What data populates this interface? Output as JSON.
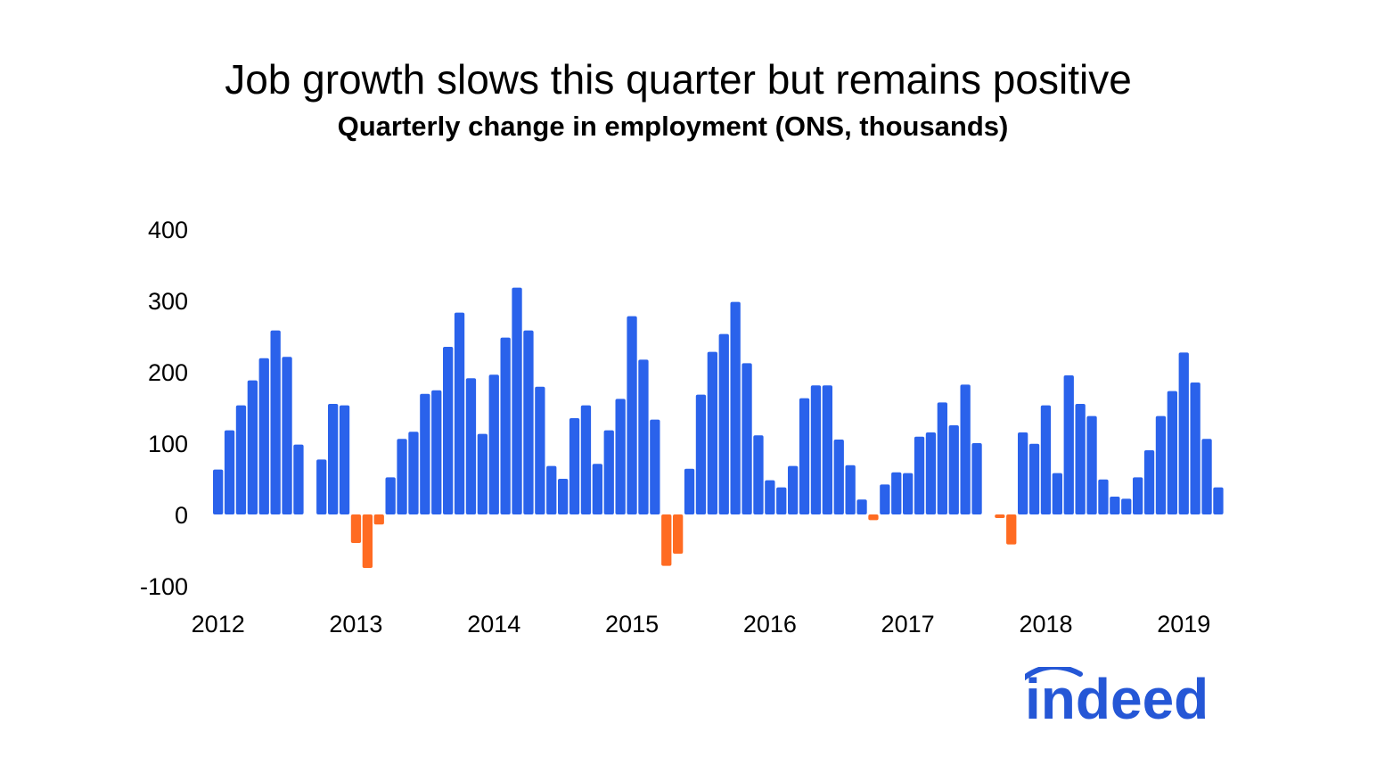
{
  "chart_data": {
    "type": "bar",
    "title": "Job growth slows this quarter but remains positive",
    "subtitle": "Quarterly change in employment (ONS, thousands)",
    "xlabel": "",
    "ylabel": "",
    "ylim": [
      -100,
      400
    ],
    "yticks": [
      400,
      300,
      200,
      100,
      0,
      -100
    ],
    "year_labels": [
      "2012",
      "2013",
      "2014",
      "2015",
      "2016",
      "2017",
      "2018",
      "2019"
    ],
    "grid": false,
    "legend": "none",
    "colors": {
      "positive": "#2a62eb",
      "negative": "#ff6b22"
    },
    "months": [
      "2012-01",
      "2012-02",
      "2012-03",
      "2012-04",
      "2012-05",
      "2012-06",
      "2012-07",
      "2012-08",
      "2012-09",
      "2012-10",
      "2012-11",
      "2012-12",
      "2013-01",
      "2013-02",
      "2013-03",
      "2013-04",
      "2013-05",
      "2013-06",
      "2013-07",
      "2013-08",
      "2013-09",
      "2013-10",
      "2013-11",
      "2013-12",
      "2014-01",
      "2014-02",
      "2014-03",
      "2014-04",
      "2014-05",
      "2014-06",
      "2014-07",
      "2014-08",
      "2014-09",
      "2014-10",
      "2014-11",
      "2014-12",
      "2015-01",
      "2015-02",
      "2015-03",
      "2015-04",
      "2015-05",
      "2015-06",
      "2015-07",
      "2015-08",
      "2015-09",
      "2015-10",
      "2015-11",
      "2015-12",
      "2016-01",
      "2016-02",
      "2016-03",
      "2016-04",
      "2016-05",
      "2016-06",
      "2016-07",
      "2016-08",
      "2016-09",
      "2016-10",
      "2016-11",
      "2016-12",
      "2017-01",
      "2017-02",
      "2017-03",
      "2017-04",
      "2017-05",
      "2017-06",
      "2017-07",
      "2017-08",
      "2017-09",
      "2017-10",
      "2017-11",
      "2017-12",
      "2018-01",
      "2018-02",
      "2018-03",
      "2018-04",
      "2018-05",
      "2018-06",
      "2018-07",
      "2018-08",
      "2018-09",
      "2018-10",
      "2018-11",
      "2018-12",
      "2019-01",
      "2019-02",
      "2019-03",
      "2019-04"
    ],
    "values": [
      63,
      118,
      153,
      188,
      219,
      258,
      221,
      98,
      0,
      77,
      155,
      153,
      -40,
      -75,
      -14,
      52,
      106,
      116,
      169,
      174,
      235,
      283,
      191,
      113,
      196,
      248,
      318,
      258,
      179,
      68,
      50,
      135,
      153,
      71,
      118,
      162,
      278,
      217,
      133,
      -72,
      -55,
      64,
      168,
      228,
      253,
      298,
      212,
      111,
      48,
      38,
      68,
      163,
      181,
      181,
      105,
      69,
      21,
      -8,
      42,
      59,
      58,
      109,
      115,
      157,
      125,
      182,
      100,
      0,
      -5,
      -42,
      115,
      99,
      153,
      58,
      195,
      155,
      138,
      49,
      25,
      22,
      52,
      90,
      138,
      173,
      227,
      185,
      106,
      38
    ]
  },
  "brand": {
    "logo_text": "indeed"
  }
}
